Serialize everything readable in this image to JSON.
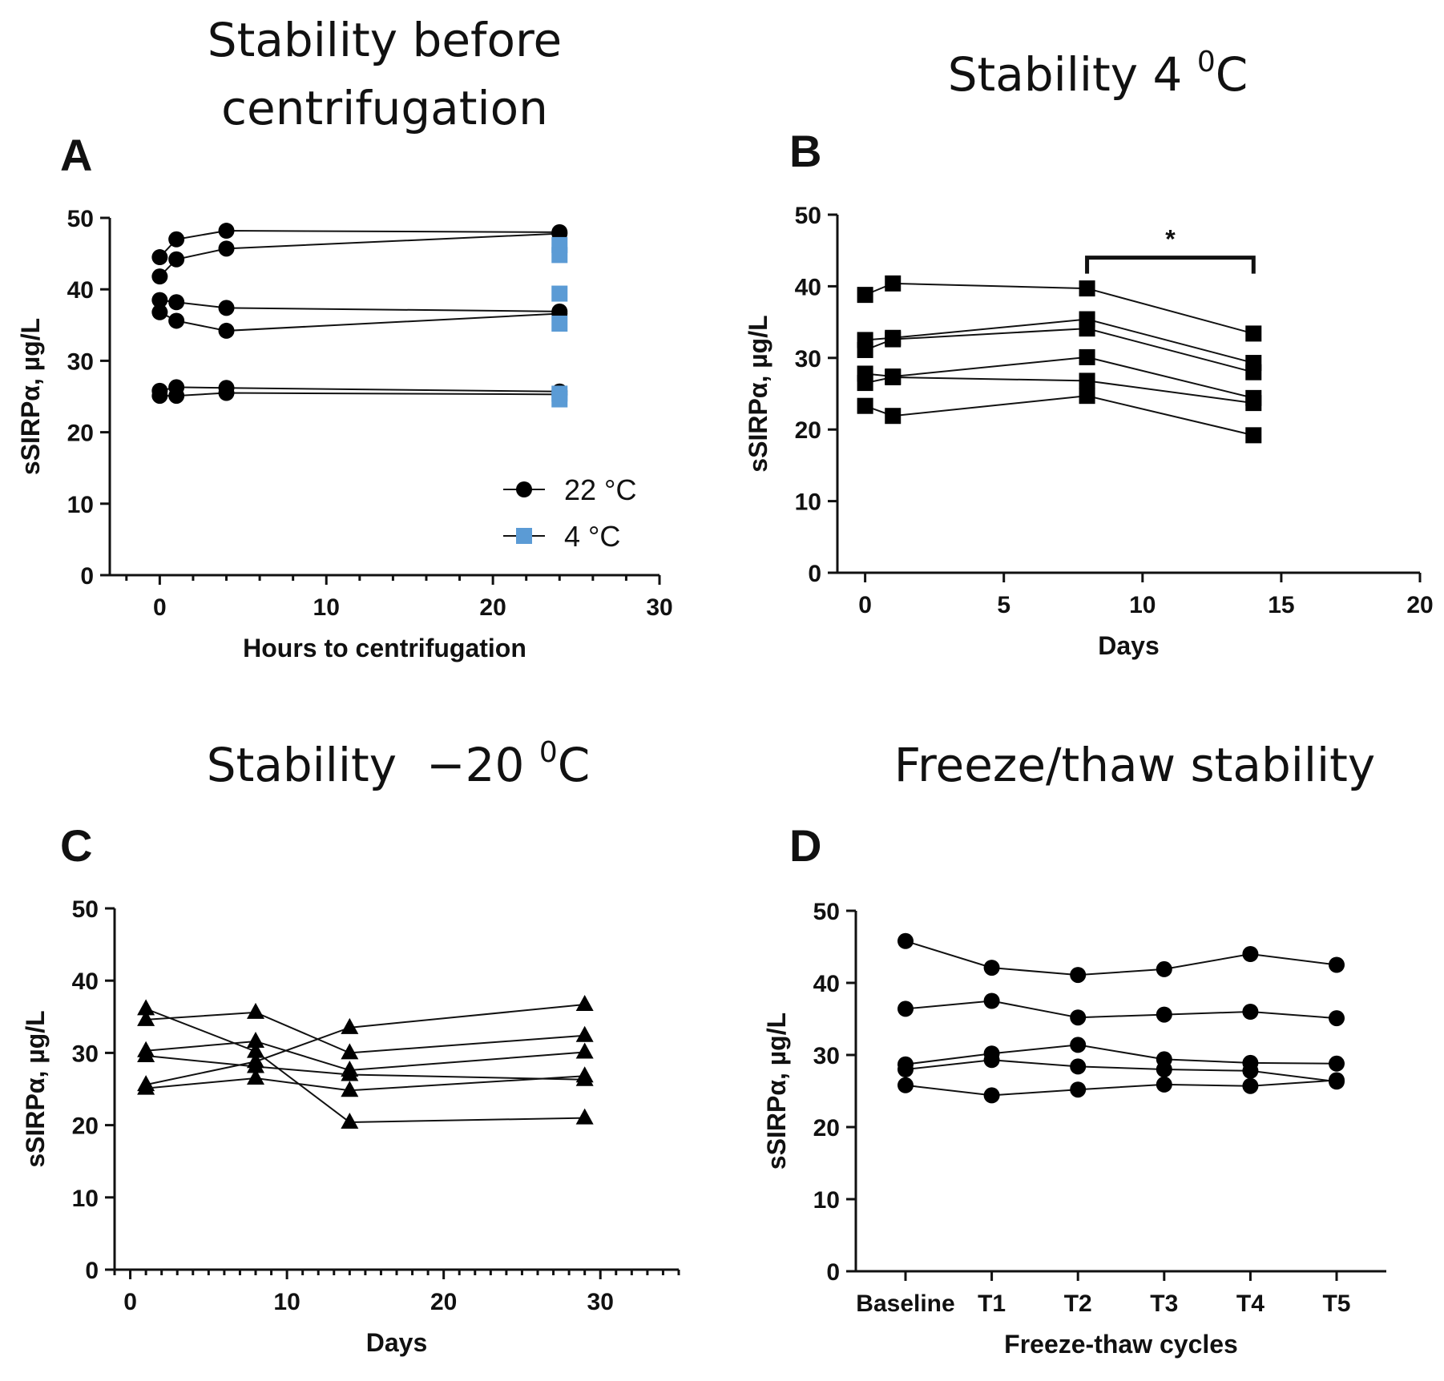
{
  "chart_data": [
    {
      "panel": "A",
      "type": "line",
      "title": "Stability before centrifugation",
      "title_lines": [
        "Stability before",
        "centrifugation"
      ],
      "xlabel": "Hours to centrifugation",
      "ylabel": "sSIRPα, µg/L",
      "xlim": [
        -3,
        30
      ],
      "ylim": [
        0,
        50
      ],
      "xticks": [
        0,
        10,
        20,
        30
      ],
      "yticks": [
        0,
        10,
        20,
        30,
        40,
        50
      ],
      "marker": "circle",
      "legend": {
        "placement": "bottom-right",
        "entries": [
          {
            "label": "22 °C",
            "marker": "circle",
            "color": "#000000"
          },
          {
            "label": "4 °C",
            "marker": "square",
            "color": "#5b9bd5"
          }
        ]
      },
      "series": [
        {
          "name": "22 °C",
          "x": [
            0,
            1,
            4,
            24
          ],
          "y": [
            44.5,
            47,
            48.2,
            48
          ]
        },
        {
          "name": "22 °C",
          "x": [
            0,
            1,
            4,
            24
          ],
          "y": [
            41.8,
            44.2,
            45.7,
            47.8
          ]
        },
        {
          "name": "22 °C",
          "x": [
            0,
            1,
            4,
            24
          ],
          "y": [
            38.5,
            38.2,
            37.4,
            36.9
          ]
        },
        {
          "name": "22 °C",
          "x": [
            0,
            1,
            4,
            24
          ],
          "y": [
            36.8,
            35.6,
            34.2,
            36.6
          ]
        },
        {
          "name": "22 °C",
          "x": [
            0,
            1,
            4,
            24
          ],
          "y": [
            25.8,
            26.3,
            26.2,
            25.7
          ]
        },
        {
          "name": "22 °C",
          "x": [
            0,
            1,
            4,
            24
          ],
          "y": [
            25.1,
            25.1,
            25.5,
            25.3
          ]
        }
      ],
      "extra_points": [
        {
          "name": "4 °C",
          "x": [
            24,
            24,
            24,
            24,
            24,
            24
          ],
          "y": [
            46.2,
            44.8,
            39.4,
            35.2,
            25.4,
            24.6
          ]
        }
      ]
    },
    {
      "panel": "B",
      "type": "line",
      "title": "Stability 4 ⁰C",
      "title_main": "Stability 4 ",
      "title_sup": "0",
      "title_tail": "C",
      "xlabel": "Days",
      "ylabel": "sSIRPα, µg/L",
      "xlim": [
        -1,
        20
      ],
      "ylim": [
        0,
        50
      ],
      "xticks": [
        0,
        5,
        10,
        15,
        20
      ],
      "yticks": [
        0,
        10,
        20,
        30,
        40,
        50
      ],
      "marker": "square",
      "annotation": {
        "text": "*",
        "from_x": 8,
        "to_x": 14,
        "y": 44
      },
      "series": [
        {
          "name": "s1",
          "x": [
            0,
            1,
            8,
            14
          ],
          "y": [
            38.8,
            40.4,
            39.7,
            33.4
          ]
        },
        {
          "name": "s2",
          "x": [
            0,
            1,
            8,
            14
          ],
          "y": [
            32.5,
            32.8,
            35.4,
            29.3
          ]
        },
        {
          "name": "s3",
          "x": [
            0,
            1,
            8,
            14
          ],
          "y": [
            31.1,
            32.6,
            34.1,
            28.0
          ]
        },
        {
          "name": "s4",
          "x": [
            0,
            1,
            8,
            14
          ],
          "y": [
            27.8,
            27.4,
            30.1,
            24.4
          ]
        },
        {
          "name": "s5",
          "x": [
            0,
            1,
            8,
            14
          ],
          "y": [
            26.5,
            27.3,
            26.8,
            23.7
          ]
        },
        {
          "name": "s6",
          "x": [
            0,
            1,
            8,
            14
          ],
          "y": [
            23.3,
            21.9,
            24.7,
            19.2
          ]
        }
      ]
    },
    {
      "panel": "C",
      "type": "line",
      "title": "Stability −20 ⁰C",
      "title_main": "Stability  −20 ",
      "title_sup": "0",
      "title_tail": "C",
      "xlabel": "Days",
      "ylabel": "sSIRPα, µg/L",
      "xlim": [
        -1,
        35
      ],
      "ylim": [
        0,
        50
      ],
      "xticks": [
        0,
        10,
        20,
        30
      ],
      "yticks": [
        0,
        10,
        20,
        30,
        40,
        50
      ],
      "marker": "triangle",
      "series": [
        {
          "name": "s1",
          "x": [
            1,
            8,
            14,
            29
          ],
          "y": [
            36.1,
            30.2,
            20.4,
            21.0
          ]
        },
        {
          "name": "s2",
          "x": [
            1,
            8,
            14,
            29
          ],
          "y": [
            34.6,
            35.6,
            30.0,
            32.4
          ]
        },
        {
          "name": "s3",
          "x": [
            1,
            8,
            14,
            29
          ],
          "y": [
            30.3,
            31.6,
            27.6,
            30.1
          ]
        },
        {
          "name": "s4",
          "x": [
            1,
            8,
            14,
            29
          ],
          "y": [
            29.6,
            28.1,
            27.0,
            26.3
          ]
        },
        {
          "name": "s5",
          "x": [
            1,
            8,
            14,
            29
          ],
          "y": [
            25.6,
            28.8,
            33.5,
            36.7
          ]
        },
        {
          "name": "s6",
          "x": [
            1,
            8,
            14,
            29
          ],
          "y": [
            25.1,
            26.5,
            24.8,
            26.8
          ]
        }
      ]
    },
    {
      "panel": "D",
      "type": "line",
      "title": "Freeze/thaw stability",
      "xlabel": "Freeze-thaw cycles",
      "ylabel": "sSIRPα, µg/L",
      "ylim": [
        0,
        50
      ],
      "yticks": [
        0,
        10,
        20,
        30,
        40,
        50
      ],
      "categories": [
        "Baseline",
        "T1",
        "T2",
        "T3",
        "T4",
        "T5"
      ],
      "marker": "circle",
      "series": [
        {
          "name": "s1",
          "values": [
            45.8,
            42.1,
            41.1,
            41.9,
            44.0,
            42.5
          ]
        },
        {
          "name": "s2",
          "values": [
            36.4,
            37.5,
            35.2,
            35.6,
            36.0,
            35.1
          ]
        },
        {
          "name": "s3",
          "values": [
            28.7,
            30.2,
            31.4,
            29.4,
            28.9,
            28.8
          ]
        },
        {
          "name": "s4",
          "values": [
            28.0,
            29.3,
            28.4,
            28.0,
            27.8,
            26.3
          ]
        },
        {
          "name": "s5",
          "values": [
            25.8,
            24.4,
            25.2,
            25.9,
            25.7,
            26.5
          ]
        }
      ]
    }
  ]
}
